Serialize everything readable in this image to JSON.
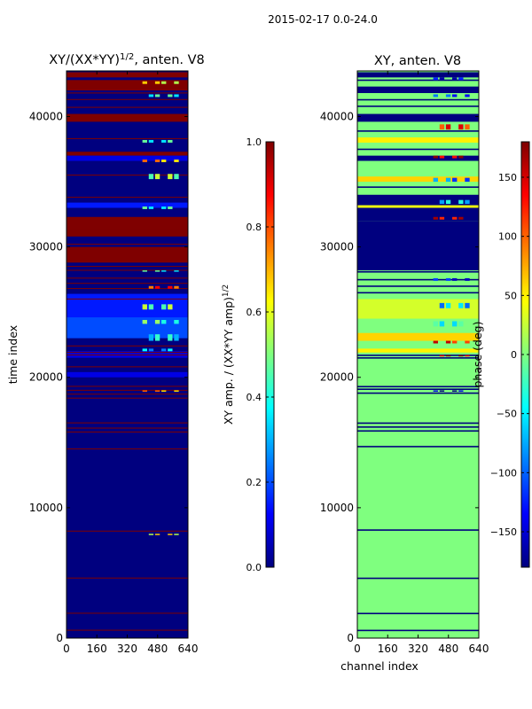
{
  "figure_title": "2015-02-17 0.0-24.0",
  "colors": {
    "jet": [
      "#00007f",
      "#0000ff",
      "#007fff",
      "#00ffff",
      "#7fff7f",
      "#ffff00",
      "#ff7f00",
      "#ff0000",
      "#7f0000"
    ]
  },
  "chart_data": [
    {
      "type": "heatmap",
      "title": "XY/(XX*YY)^{1/2}, anten. V8",
      "title_parts": {
        "base": "XY/(XX*YY)",
        "sup": "1/2",
        "rest": ", anten. V8"
      },
      "xlabel": "",
      "ylabel": "time index",
      "xlim": [
        0,
        640
      ],
      "ylim": [
        0,
        43500
      ],
      "x_ticks": [
        0,
        160,
        320,
        480,
        640
      ],
      "y_ticks": [
        0,
        10000,
        20000,
        30000,
        40000
      ],
      "colorbar": {
        "label": "XY amp. / (XX*YY amp)^{1/2}",
        "label_parts": {
          "base": "XY amp. / (XX*YY amp)",
          "sup": "1/2"
        },
        "range": [
          0.0,
          1.0
        ],
        "ticks": [
          0.0,
          0.2,
          0.4,
          0.6,
          0.8,
          1.0
        ],
        "tick_labels": [
          "0.0",
          "0.2",
          "0.4",
          "0.6",
          "0.8",
          "1.0"
        ],
        "colormap": "jet"
      },
      "background_value": 0.0,
      "bands": [
        {
          "y0": 43000,
          "y1": 43400,
          "value": 1.0
        },
        {
          "y0": 42000,
          "y1": 42800,
          "value": 1.0
        },
        {
          "y0": 39600,
          "y1": 40200,
          "value": 1.0
        },
        {
          "y0": 37000,
          "y1": 37300,
          "value": 1.0
        },
        {
          "y0": 30800,
          "y1": 32300,
          "value": 1.0
        },
        {
          "y0": 28800,
          "y1": 30000,
          "value": 1.0
        },
        {
          "y0": 23000,
          "y1": 26000,
          "value": 0.2
        },
        {
          "y0": 24600,
          "y1": 26400,
          "value": 0.15
        },
        {
          "y0": 33000,
          "y1": 33400,
          "value": 0.15
        },
        {
          "y0": 36600,
          "y1": 37000,
          "value": 0.1
        },
        {
          "y0": 21500,
          "y1": 22000,
          "value": 0.1
        },
        {
          "y0": 20000,
          "y1": 20400,
          "value": 0.1
        }
      ],
      "lines": [
        43700,
        41800,
        41300,
        40700,
        38300,
        35500,
        33800,
        31300,
        30200,
        28500,
        28200,
        27600,
        27200,
        26800,
        26000,
        22400,
        21900,
        21700,
        20800,
        19300,
        19000,
        18700,
        18400,
        16500,
        16100,
        15800,
        14500,
        8200,
        4600,
        1900,
        600
      ],
      "patches": [
        {
          "x0": 400,
          "x1": 600,
          "y0": 43500,
          "y1": 43700,
          "value": 0.5
        },
        {
          "x0": 400,
          "x1": 600,
          "y0": 42500,
          "y1": 42700,
          "value": 0.6
        },
        {
          "x0": 400,
          "x1": 600,
          "y0": 41500,
          "y1": 41700,
          "value": 0.4
        },
        {
          "x0": 400,
          "x1": 600,
          "y0": 38000,
          "y1": 38200,
          "value": 0.4
        },
        {
          "x0": 400,
          "x1": 600,
          "y0": 36500,
          "y1": 36700,
          "value": 0.7
        },
        {
          "x0": 400,
          "x1": 600,
          "y0": 35200,
          "y1": 35600,
          "value": 0.5
        },
        {
          "x0": 400,
          "x1": 600,
          "y0": 32900,
          "y1": 33100,
          "value": 0.4
        },
        {
          "x0": 400,
          "x1": 600,
          "y0": 28100,
          "y1": 28200,
          "value": 0.4
        },
        {
          "x0": 400,
          "x1": 600,
          "y0": 26800,
          "y1": 27000,
          "value": 0.8
        },
        {
          "x0": 400,
          "x1": 600,
          "y0": 25200,
          "y1": 25600,
          "value": 0.5
        },
        {
          "x0": 400,
          "x1": 600,
          "y0": 24100,
          "y1": 24400,
          "value": 0.45
        },
        {
          "x0": 400,
          "x1": 600,
          "y0": 22800,
          "y1": 23300,
          "value": 0.35
        },
        {
          "x0": 400,
          "x1": 600,
          "y0": 22000,
          "y1": 22200,
          "value": 0.3
        },
        {
          "x0": 400,
          "x1": 600,
          "y0": 18900,
          "y1": 19000,
          "value": 0.7
        },
        {
          "x0": 400,
          "x1": 600,
          "y0": 7900,
          "y1": 8000,
          "value": 0.6
        }
      ]
    },
    {
      "type": "heatmap",
      "title": "XY, anten. V8",
      "xlabel": "channel index",
      "ylabel": "",
      "xlim": [
        0,
        640
      ],
      "ylim": [
        0,
        43500
      ],
      "x_ticks": [
        0,
        160,
        320,
        480,
        640
      ],
      "y_ticks": [
        0,
        10000,
        20000,
        30000,
        40000
      ],
      "colorbar": {
        "label": "phase (deg)",
        "range": [
          -180,
          180
        ],
        "ticks": [
          150,
          100,
          50,
          0,
          -50,
          -100,
          -150
        ],
        "tick_labels": [
          "150",
          "100",
          "50",
          "0",
          "−50",
          "−100",
          "−150"
        ],
        "colormap": "jet"
      },
      "background_value": 0,
      "bands": [
        {
          "y0": 43000,
          "y1": 43400,
          "value": -180
        },
        {
          "y0": 41800,
          "y1": 42300,
          "value": -180
        },
        {
          "y0": 39600,
          "y1": 40200,
          "value": -180
        },
        {
          "y0": 36600,
          "y1": 37000,
          "value": -180
        },
        {
          "y0": 32000,
          "y1": 34000,
          "value": -180
        },
        {
          "y0": 28200,
          "y1": 32000,
          "value": -180
        },
        {
          "y0": 38000,
          "y1": 38400,
          "value": 50
        },
        {
          "y0": 35000,
          "y1": 35400,
          "value": 60
        },
        {
          "y0": 33000,
          "y1": 33200,
          "value": 40
        },
        {
          "y0": 24500,
          "y1": 26000,
          "value": 30
        },
        {
          "y0": 22800,
          "y1": 23400,
          "value": 60
        },
        {
          "y0": 21900,
          "y1": 22200,
          "value": 50
        }
      ],
      "lines": [
        43700,
        42800,
        41300,
        40800,
        38900,
        37500,
        34600,
        28100,
        27500,
        27000,
        26500,
        21700,
        21500,
        19300,
        19100,
        18800,
        16500,
        16200,
        15900,
        14700,
        8300,
        4600,
        1900,
        600
      ],
      "patches": [
        {
          "x0": 400,
          "x1": 600,
          "y0": 42800,
          "y1": 43000,
          "value": -150
        },
        {
          "x0": 400,
          "x1": 600,
          "y0": 41500,
          "y1": 41700,
          "value": -120
        },
        {
          "x0": 400,
          "x1": 600,
          "y0": 39000,
          "y1": 39400,
          "value": 120
        },
        {
          "x0": 400,
          "x1": 600,
          "y0": 36800,
          "y1": 37000,
          "value": 150
        },
        {
          "x0": 400,
          "x1": 600,
          "y0": 35000,
          "y1": 35300,
          "value": -100
        },
        {
          "x0": 400,
          "x1": 600,
          "y0": 33300,
          "y1": 33600,
          "value": -60
        },
        {
          "x0": 400,
          "x1": 600,
          "y0": 32100,
          "y1": 32300,
          "value": 140
        },
        {
          "x0": 400,
          "x1": 600,
          "y0": 27400,
          "y1": 27600,
          "value": -140
        },
        {
          "x0": 400,
          "x1": 600,
          "y0": 25300,
          "y1": 25700,
          "value": -80
        },
        {
          "x0": 400,
          "x1": 600,
          "y0": 23900,
          "y1": 24300,
          "value": -40
        },
        {
          "x0": 400,
          "x1": 600,
          "y0": 22600,
          "y1": 22800,
          "value": 130
        },
        {
          "x0": 400,
          "x1": 600,
          "y0": 21600,
          "y1": 21700,
          "value": 160
        },
        {
          "x0": 400,
          "x1": 600,
          "y0": 18900,
          "y1": 19000,
          "value": -170
        }
      ]
    }
  ]
}
